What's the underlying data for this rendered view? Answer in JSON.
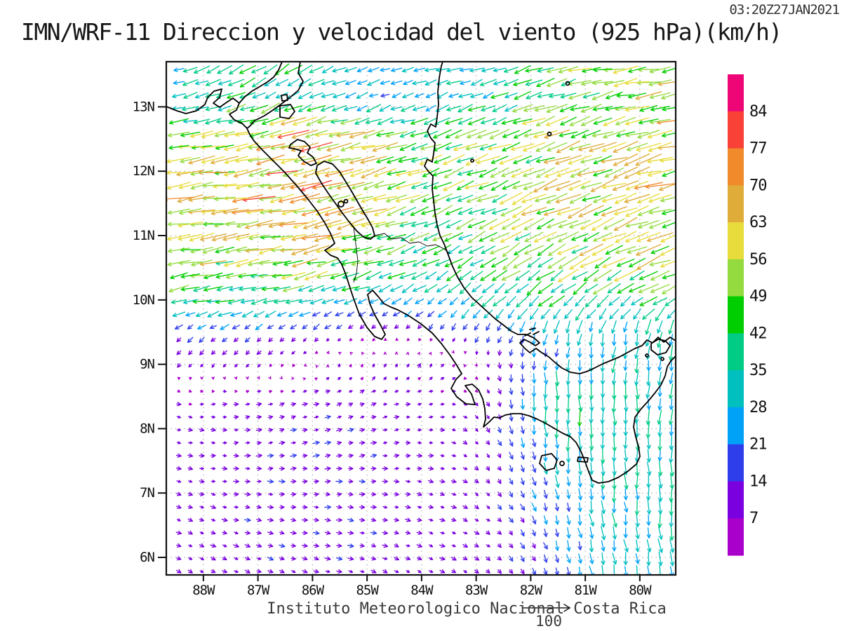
{
  "header": {
    "timestamp": "03:20Z27JAN2021",
    "title": "IMN/WRF-11 Direccion y velocidad del viento (925 hPa)(km/h)"
  },
  "footer": {
    "caption": "Instituto Meteorologico Nacional Costa Rica",
    "reference_value": "100"
  },
  "chart_data": {
    "type": "vector-field-map",
    "title": "IMN/WRF-11 Direccion y velocidad del viento (925 hPa)(km/h)",
    "timestamp": "03:20Z27JAN2021",
    "units": "km/h",
    "pressure_level": "925 hPa",
    "lat_range": [
      5.74,
      13.7
    ],
    "lon_range_w": [
      88.68,
      79.34
    ],
    "grid": true,
    "x_axis": {
      "tick_lons_w": [
        88,
        87,
        86,
        85,
        84,
        83,
        82,
        81,
        80
      ],
      "tick_labels": [
        "88W",
        "87W",
        "86W",
        "85W",
        "84W",
        "83W",
        "82W",
        "81W",
        "80W"
      ]
    },
    "y_axis": {
      "tick_lats": [
        13,
        12,
        11,
        10,
        9,
        8,
        7,
        6
      ],
      "tick_labels": [
        "13N",
        "12N",
        "11N",
        "10N",
        "9N",
        "8N",
        "7N",
        "6N"
      ]
    },
    "colorbar": {
      "position": "right",
      "levels": [
        7,
        14,
        21,
        28,
        35,
        42,
        49,
        56,
        63,
        70,
        77,
        84
      ],
      "colors_low_to_high": [
        "#AA00CC",
        "#7A00E0",
        "#2E3EEB",
        "#00A2F8",
        "#00BFBF",
        "#00CC85",
        "#00CE00",
        "#93DB3E",
        "#E8DC3C",
        "#DFAC3A",
        "#F08A2A",
        "#F94138",
        "#EE0677"
      ]
    },
    "reference_vector": {
      "speed_kmh": 100,
      "label": "100"
    },
    "arrow_grid": {
      "dlat_deg": 0.2,
      "dlon_deg": 0.21
    },
    "wind_field": {
      "comment": "u eastward km/h, v northward km/h, rows = lats (N), cols = lons (W)",
      "lats": [
        13.7,
        13.1,
        12.5,
        11.5,
        10.5,
        10.0,
        9.5,
        9.0,
        8.5,
        7.5,
        6.5,
        5.7
      ],
      "lons_w": [
        88.5,
        87.5,
        86.5,
        85.5,
        84.5,
        83.5,
        82.5,
        81.5,
        80.5,
        79.5
      ],
      "u": [
        [
          -28,
          -38,
          -35,
          -30,
          -30,
          -30,
          -32,
          -42,
          -50,
          -55
        ],
        [
          -30,
          -35,
          -30,
          -28,
          -22,
          -28,
          -35,
          -45,
          -50,
          -55
        ],
        [
          -50,
          -55,
          -68,
          -65,
          -48,
          -45,
          -47,
          -52,
          -56,
          -58
        ],
        [
          -62,
          -64,
          -65,
          -62,
          -50,
          -43,
          -46,
          -50,
          -55,
          -58
        ],
        [
          -52,
          -51,
          -54,
          -50,
          -38,
          -32,
          -36,
          -42,
          -47,
          -52
        ],
        [
          -36,
          -38,
          -36,
          -30,
          -20,
          -22,
          -26,
          -30,
          -32,
          -34
        ],
        [
          -13,
          -13,
          -11,
          -9,
          -6,
          -6,
          -9,
          -6,
          -6,
          -9
        ],
        [
          -7,
          -6,
          -5,
          1,
          4,
          5,
          1,
          0,
          -2,
          -4
        ],
        [
          8,
          9,
          10,
          11,
          9,
          8,
          4,
          2,
          0,
          -2
        ],
        [
          10,
          11,
          13,
          13,
          11,
          10,
          6,
          3,
          2,
          0
        ],
        [
          10,
          11,
          13,
          13,
          11,
          10,
          9,
          6,
          4,
          3
        ],
        [
          9,
          10,
          12,
          12,
          10,
          10,
          8,
          6,
          5,
          4
        ]
      ],
      "v": [
        [
          -4,
          -18,
          -22,
          -12,
          -6,
          -8,
          -10,
          -12,
          -10,
          -8
        ],
        [
          -8,
          -15,
          -18,
          -10,
          -10,
          -12,
          -15,
          -15,
          -12,
          -10
        ],
        [
          -6,
          -10,
          -13,
          -14,
          -13,
          -15,
          -17,
          -18,
          -16,
          -14
        ],
        [
          -8,
          -10,
          -12,
          -14,
          -16,
          -18,
          -20,
          -22,
          -20,
          -16
        ],
        [
          -8,
          -10,
          -12,
          -12,
          -14,
          -20,
          -24,
          -26,
          -24,
          -20
        ],
        [
          -7,
          -8,
          -9,
          -10,
          -12,
          -18,
          -24,
          -27,
          -26,
          -22
        ],
        [
          -10,
          -12,
          -11,
          -9,
          -7,
          -11,
          -18,
          -26,
          -29,
          -31
        ],
        [
          -8,
          -7,
          -6,
          7,
          9,
          7,
          -13,
          -22,
          -29,
          -31
        ],
        [
          -3,
          2,
          4,
          4,
          3,
          1,
          -14,
          -42,
          -34,
          -32
        ],
        [
          -2,
          0,
          2,
          2,
          1,
          -2,
          -12,
          -30,
          -33,
          -31
        ],
        [
          -4,
          -3,
          -2,
          -2,
          -3,
          -4,
          -8,
          -20,
          -30,
          -32
        ],
        [
          -5,
          -5,
          -4,
          -4,
          -5,
          -5,
          -8,
          -18,
          -28,
          -30
        ]
      ]
    }
  }
}
